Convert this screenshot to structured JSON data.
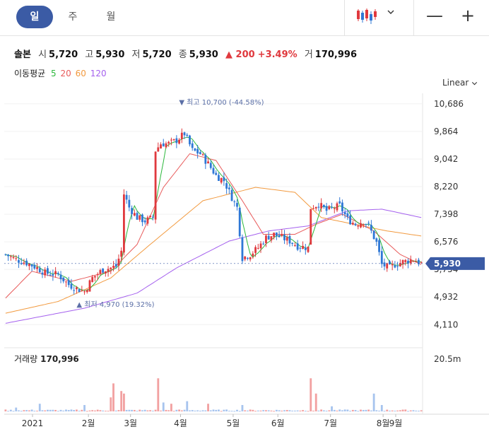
{
  "toolbar": {
    "tabs": [
      {
        "label": "일",
        "active": true
      },
      {
        "label": "주",
        "active": false
      },
      {
        "label": "월",
        "active": false
      }
    ],
    "chart_type_icon": "candlestick-icon",
    "dropdown_icon": "chevron-down-icon",
    "minus_label": "—",
    "plus_label": "+"
  },
  "quote": {
    "name": "솔본",
    "open_label": "시",
    "open": "5,720",
    "high_label": "고",
    "high": "5,930",
    "low_label": "저",
    "low": "5,720",
    "close_label": "종",
    "close": "5,930",
    "change": "▲ 200",
    "change_pct": "+3.49%",
    "volume_label": "거",
    "volume": "170,996"
  },
  "ma": {
    "label": "이동평균",
    "periods": [
      {
        "label": "5",
        "color": "#2db83d"
      },
      {
        "label": "20",
        "color": "#e85a5a"
      },
      {
        "label": "60",
        "color": "#f29a3f"
      },
      {
        "label": "120",
        "color": "#a561ee"
      }
    ]
  },
  "scale_mode": "Linear",
  "colors": {
    "up": "#e0393e",
    "down": "#2f78d6",
    "accent": "#3b5ba5"
  },
  "chart_data": {
    "type": "candlestick",
    "y_ticks": [
      "10,686",
      "9,864",
      "9,042",
      "8,220",
      "7,398",
      "6,576",
      "5,754",
      "4,932",
      "4,110"
    ],
    "ylim": [
      3800,
      11000
    ],
    "x_ticks": [
      "2021",
      "2월",
      "3월",
      "4월",
      "5월",
      "6월",
      "7월",
      "8월",
      "9월"
    ],
    "current_price": "5,930",
    "max_annotation": "▼ 최고  10,700 (-44.58%)",
    "min_annotation": "▲ 최저  4,970 (19.32%)",
    "price_anchors": [
      [
        0,
        6200
      ],
      [
        4,
        6050
      ],
      [
        8,
        5950
      ],
      [
        12,
        5800
      ],
      [
        15,
        5650
      ],
      [
        20,
        5600
      ],
      [
        24,
        5300
      ],
      [
        28,
        5150
      ],
      [
        30,
        5100
      ],
      [
        33,
        5500
      ],
      [
        37,
        5750
      ],
      [
        40,
        5800
      ],
      [
        42,
        5850
      ],
      [
        44,
        6300
      ],
      [
        45,
        8000
      ],
      [
        47,
        7600
      ],
      [
        50,
        7300
      ],
      [
        53,
        7200
      ],
      [
        56,
        7300
      ],
      [
        57,
        9300
      ],
      [
        59,
        9500
      ],
      [
        62,
        9500
      ],
      [
        65,
        9600
      ],
      [
        68,
        9800
      ],
      [
        71,
        9300
      ],
      [
        74,
        9200
      ],
      [
        77,
        8900
      ],
      [
        80,
        8550
      ],
      [
        83,
        8400
      ],
      [
        86,
        7900
      ],
      [
        88,
        7600
      ],
      [
        90,
        6100
      ],
      [
        93,
        6200
      ],
      [
        96,
        6400
      ],
      [
        99,
        6700
      ],
      [
        102,
        6800
      ],
      [
        105,
        6700
      ],
      [
        108,
        6600
      ],
      [
        111,
        6450
      ],
      [
        115,
        6400
      ],
      [
        116,
        7600
      ],
      [
        119,
        7700
      ],
      [
        122,
        7500
      ],
      [
        125,
        7600
      ],
      [
        127,
        7650
      ],
      [
        130,
        7250
      ],
      [
        133,
        7100
      ],
      [
        136,
        7200
      ],
      [
        138,
        7050
      ],
      [
        141,
        6550
      ],
      [
        143,
        5900
      ],
      [
        146,
        5800
      ],
      [
        148,
        5900
      ],
      [
        151,
        5980
      ],
      [
        155,
        6050
      ],
      [
        158,
        5930
      ]
    ],
    "ma120_anchors": [
      [
        0,
        4150
      ],
      [
        30,
        4600
      ],
      [
        50,
        5050
      ],
      [
        65,
        5800
      ],
      [
        85,
        6600
      ],
      [
        100,
        6900
      ],
      [
        115,
        7050
      ],
      [
        130,
        7500
      ],
      [
        143,
        7550
      ],
      [
        158,
        7300
      ]
    ],
    "ma60_anchors": [
      [
        0,
        4450
      ],
      [
        20,
        4800
      ],
      [
        40,
        5500
      ],
      [
        55,
        6500
      ],
      [
        75,
        7800
      ],
      [
        95,
        8200
      ],
      [
        110,
        8050
      ],
      [
        120,
        7300
      ],
      [
        145,
        6900
      ],
      [
        158,
        6750
      ]
    ],
    "ma20_anchors": [
      [
        0,
        4900
      ],
      [
        10,
        5700
      ],
      [
        25,
        5400
      ],
      [
        40,
        5700
      ],
      [
        50,
        6500
      ],
      [
        60,
        8200
      ],
      [
        70,
        9200
      ],
      [
        80,
        9000
      ],
      [
        90,
        7800
      ],
      [
        98,
        6800
      ],
      [
        110,
        6800
      ],
      [
        118,
        7100
      ],
      [
        128,
        7400
      ],
      [
        140,
        6900
      ],
      [
        150,
        6200
      ],
      [
        158,
        5900
      ]
    ],
    "volume_label": "거래량",
    "volume_value": "170,996",
    "volume_max_label": "20.5m",
    "volume_ylim": [
      0,
      25000000
    ],
    "volume_spikes": [
      [
        4,
        1500000
      ],
      [
        13,
        3000000
      ],
      [
        30,
        2500000
      ],
      [
        40,
        5500000
      ],
      [
        41,
        11000000
      ],
      [
        44,
        8000000
      ],
      [
        45,
        7000000
      ],
      [
        58,
        13000000
      ],
      [
        60,
        3500000
      ],
      [
        63,
        3000000
      ],
      [
        69,
        4000000
      ],
      [
        77,
        3000000
      ],
      [
        90,
        2500000
      ],
      [
        116,
        13000000
      ],
      [
        118,
        7000000
      ],
      [
        124,
        2000000
      ],
      [
        140,
        7000000
      ],
      [
        143,
        2500000
      ]
    ]
  },
  "chart_svg": {
    "x0": 6,
    "x1": 598,
    "y_top": 132,
    "y_bot": 474,
    "v_top": 492,
    "v_bot": 582
  }
}
